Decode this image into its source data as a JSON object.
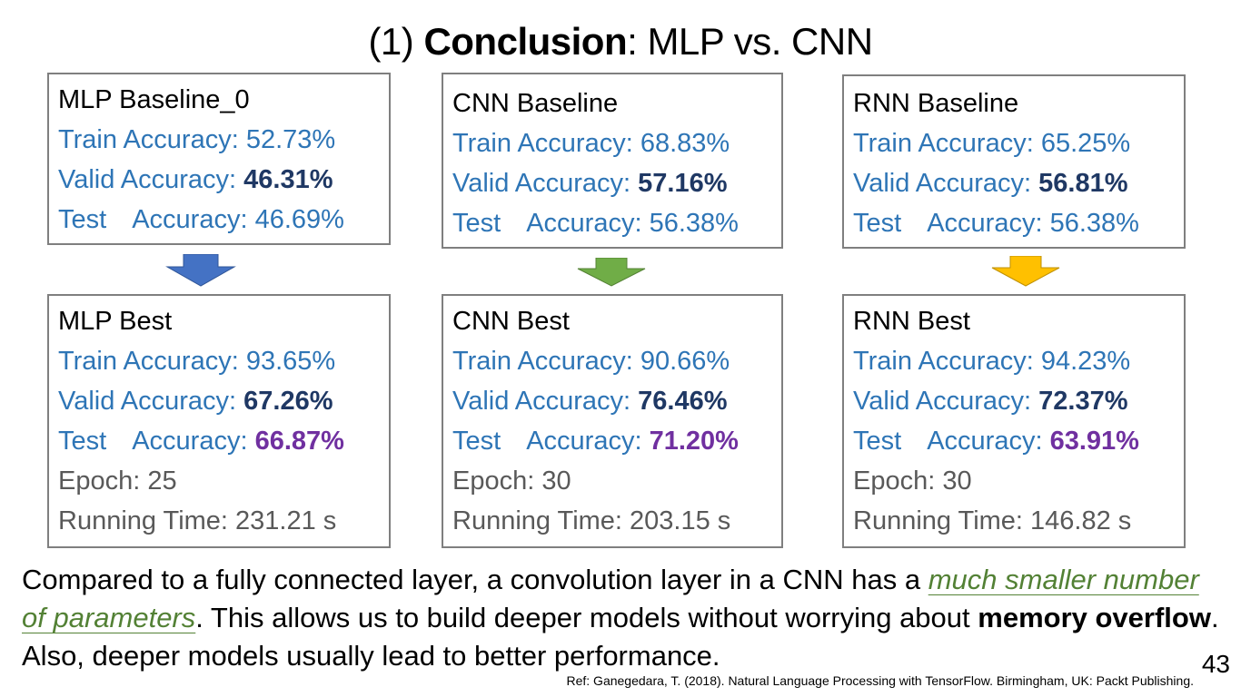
{
  "slide": {
    "title_prefix": "(1) ",
    "title_bold": "Conclusion",
    "title_suffix": ": MLP vs. CNN",
    "page_number": "43",
    "reference": "Ref: Ganegedara, T. (2018). Natural Language Processing with TensorFlow. Birmingham, UK: Packt Publishing."
  },
  "labels": {
    "train": "Train Accuracy: ",
    "valid": "Valid Accuracy: ",
    "test_a": "Test",
    "test_b": "Accuracy: ",
    "epoch": "Epoch: ",
    "time": "Running Time: "
  },
  "baselines": [
    {
      "name": "MLP Baseline_0",
      "train": "52.73%",
      "valid": "46.31%",
      "test": "46.69%"
    },
    {
      "name": "CNN Baseline",
      "train": "68.83%",
      "valid": "57.16%",
      "test": "56.38%"
    },
    {
      "name": "RNN Baseline",
      "train": "65.25%",
      "valid": "56.81%",
      "test": "56.38%"
    }
  ],
  "best": [
    {
      "name": "MLP Best",
      "train": "93.65%",
      "valid": "67.26%",
      "test": "66.87%",
      "epoch": "25",
      "time": "231.21 s"
    },
    {
      "name": "CNN Best",
      "train": "90.66%",
      "valid": "76.46%",
      "test": "71.20%",
      "epoch": "30",
      "time": "203.15 s"
    },
    {
      "name": "RNN Best",
      "train": "94.23%",
      "valid": "72.37%",
      "test": "63.91%",
      "epoch": "30",
      "time": "146.82 s"
    }
  ],
  "arrows": [
    {
      "name": "blue-down-arrow",
      "color": "#4472c4"
    },
    {
      "name": "green-down-arrow",
      "color": "#70ad47"
    },
    {
      "name": "gold-down-arrow",
      "color": "#ffc000"
    }
  ],
  "paragraph": {
    "p1": "Compared to a fully connected layer, a convolution layer in a CNN has a ",
    "link": "much smaller number of parameters",
    "p2": ". This allows us to build deeper models without worrying about ",
    "bold": "memory overflow",
    "p3": ". Also, deeper models usually lead to better performance."
  }
}
